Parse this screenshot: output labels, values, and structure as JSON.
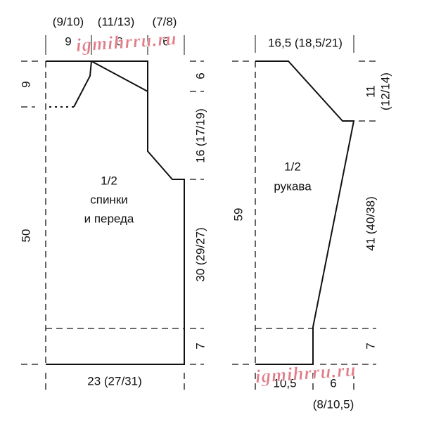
{
  "watermarks": [
    "igmihrru.ru",
    "igmihrru.ru"
  ],
  "body": {
    "label": [
      "1/2",
      "спинки",
      "и переда"
    ],
    "top": [
      {
        "size": "9",
        "alt": "(9/10)"
      },
      {
        "size": "8",
        "alt": "(11/13)"
      },
      {
        "size": "6",
        "alt": "(7/8)"
      }
    ],
    "left": [
      "9",
      "50"
    ],
    "right": [
      "6",
      "16 (17/19)",
      "30 (29/27)",
      "7"
    ],
    "bottom": "23 (27/31)"
  },
  "sleeve": {
    "label": [
      "1/2",
      "рукава"
    ],
    "top": "16,5 (18,5/21)",
    "left": "59",
    "right": [
      "11",
      "(12/14)",
      "41 (40/38)",
      "7"
    ],
    "bottom": [
      "10,5",
      "6",
      "(8/10,5)"
    ]
  }
}
